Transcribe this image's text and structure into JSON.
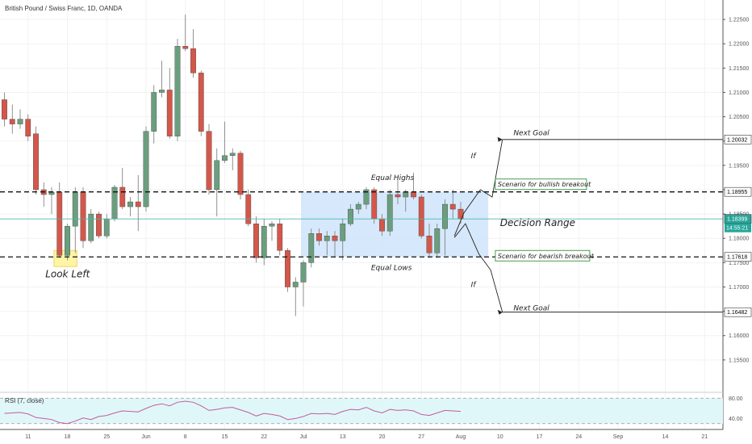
{
  "header": {
    "title": "British Pound / Swiss Franc, 1D, OANDA"
  },
  "indicator": {
    "label": "RSI (7, close)"
  },
  "colors": {
    "bull": "#6b9e7e",
    "bear": "#d3574a",
    "grid": "#f2f2f2",
    "range_fill": "#cfe4fa",
    "rsi_line": "#c25b9a",
    "rsi_band": "#e0f7fa",
    "price_line": "#4db6ac"
  },
  "chart_data": {
    "type": "candlestick",
    "ylim": [
      1.15,
      1.228
    ],
    "price_ticks": [
      "1.22500",
      "1.22000",
      "1.21500",
      "1.21000",
      "1.20500",
      "1.20000",
      "1.19500",
      "1.19000",
      "1.18500",
      "1.18000",
      "1.17500",
      "1.17000",
      "1.16500",
      "1.16000",
      "1.15500"
    ],
    "x_ticks": [
      {
        "label": "11",
        "i": 3
      },
      {
        "label": "18",
        "i": 8
      },
      {
        "label": "25",
        "i": 13
      },
      {
        "label": "Jun",
        "i": 18
      },
      {
        "label": "8",
        "i": 23
      },
      {
        "label": "15",
        "i": 28
      },
      {
        "label": "22",
        "i": 33
      },
      {
        "label": "Jul",
        "i": 38
      },
      {
        "label": "13",
        "i": 43
      },
      {
        "label": "20",
        "i": 48
      },
      {
        "label": "27",
        "i": 53
      },
      {
        "label": "Aug",
        "i": 58
      },
      {
        "label": "10",
        "i": 63
      },
      {
        "label": "17",
        "i": 68
      },
      {
        "label": "24",
        "i": 73
      },
      {
        "label": "Sep",
        "i": 78
      },
      {
        "label": "14",
        "i": 84
      },
      {
        "label": "21",
        "i": 89
      }
    ],
    "candles": [
      [
        1.2085,
        1.21,
        1.203,
        1.2045
      ],
      [
        1.2045,
        1.2075,
        1.2015,
        1.2035
      ],
      [
        1.2035,
        1.2065,
        1.2025,
        1.2045
      ],
      [
        1.2045,
        1.2055,
        1.2,
        1.201
      ],
      [
        1.2015,
        1.203,
        1.189,
        1.19
      ],
      [
        1.19,
        1.1915,
        1.1865,
        1.189
      ],
      [
        1.189,
        1.1905,
        1.185,
        1.1895
      ],
      [
        1.1895,
        1.1915,
        1.176,
        1.1765
      ],
      [
        1.1765,
        1.183,
        1.1755,
        1.1825
      ],
      [
        1.1825,
        1.1905,
        1.177,
        1.1895
      ],
      [
        1.1895,
        1.1905,
        1.178,
        1.1795
      ],
      [
        1.1795,
        1.186,
        1.179,
        1.185
      ],
      [
        1.185,
        1.1855,
        1.18,
        1.1805
      ],
      [
        1.1805,
        1.185,
        1.18,
        1.184
      ],
      [
        1.184,
        1.191,
        1.1835,
        1.1905
      ],
      [
        1.1905,
        1.1945,
        1.186,
        1.1865
      ],
      [
        1.1865,
        1.1885,
        1.1845,
        1.1875
      ],
      [
        1.1875,
        1.193,
        1.1815,
        1.1865
      ],
      [
        1.1865,
        1.203,
        1.1855,
        1.202
      ],
      [
        1.202,
        1.2115,
        1.1995,
        1.21
      ],
      [
        1.21,
        1.2165,
        1.209,
        1.2105
      ],
      [
        1.2105,
        1.215,
        1.2005,
        1.201
      ],
      [
        1.201,
        1.221,
        1.2,
        1.2195
      ],
      [
        1.2195,
        1.226,
        1.2185,
        1.219
      ],
      [
        1.219,
        1.223,
        1.213,
        1.214
      ],
      [
        1.214,
        1.2145,
        1.201,
        1.202
      ],
      [
        1.202,
        1.2035,
        1.189,
        1.19
      ],
      [
        1.19,
        1.1985,
        1.1845,
        1.196
      ],
      [
        1.196,
        1.204,
        1.1955,
        1.197
      ],
      [
        1.197,
        1.1985,
        1.194,
        1.1975
      ],
      [
        1.1975,
        1.198,
        1.188,
        1.189
      ],
      [
        1.189,
        1.19,
        1.1825,
        1.183
      ],
      [
        1.183,
        1.1845,
        1.175,
        1.176
      ],
      [
        1.176,
        1.184,
        1.1745,
        1.1825
      ],
      [
        1.1825,
        1.1835,
        1.1795,
        1.183
      ],
      [
        1.183,
        1.184,
        1.1765,
        1.1775
      ],
      [
        1.1775,
        1.178,
        1.169,
        1.17
      ],
      [
        1.17,
        1.172,
        1.164,
        1.171
      ],
      [
        1.171,
        1.1755,
        1.166,
        1.175
      ],
      [
        1.175,
        1.182,
        1.174,
        1.181
      ],
      [
        1.181,
        1.182,
        1.1785,
        1.1795
      ],
      [
        1.1795,
        1.1815,
        1.1765,
        1.1805
      ],
      [
        1.1805,
        1.1815,
        1.176,
        1.1795
      ],
      [
        1.1795,
        1.184,
        1.1755,
        1.183
      ],
      [
        1.183,
        1.187,
        1.1825,
        1.186
      ],
      [
        1.186,
        1.1875,
        1.185,
        1.187
      ],
      [
        1.187,
        1.1905,
        1.186,
        1.19
      ],
      [
        1.19,
        1.1905,
        1.183,
        1.184
      ],
      [
        1.184,
        1.185,
        1.1805,
        1.1815
      ],
      [
        1.1815,
        1.19,
        1.1805,
        1.189
      ],
      [
        1.189,
        1.192,
        1.187,
        1.1885
      ],
      [
        1.1885,
        1.19,
        1.1855,
        1.1895
      ],
      [
        1.1895,
        1.1935,
        1.188,
        1.1885
      ],
      [
        1.1885,
        1.189,
        1.18,
        1.1805
      ],
      [
        1.1805,
        1.183,
        1.176,
        1.177
      ],
      [
        1.177,
        1.183,
        1.176,
        1.182
      ],
      [
        1.182,
        1.188,
        1.1765,
        1.187
      ],
      [
        1.187,
        1.19,
        1.184,
        1.186
      ],
      [
        1.186,
        1.1875,
        1.183,
        1.184
      ]
    ],
    "rsi": {
      "ylim": [
        20,
        90
      ],
      "band": [
        30,
        80
      ],
      "ticks": [
        "80.00",
        "40.00"
      ],
      "values": [
        50,
        51,
        52,
        49,
        42,
        40,
        38,
        32,
        30,
        35,
        41,
        38,
        44,
        46,
        51,
        55,
        54,
        53,
        60,
        66,
        69,
        65,
        72,
        74,
        72,
        65,
        56,
        58,
        61,
        62,
        57,
        52,
        45,
        50,
        48,
        45,
        38,
        40,
        44,
        50,
        49,
        50,
        48,
        54,
        58,
        57,
        62,
        55,
        51,
        58,
        56,
        57,
        55,
        48,
        46,
        51,
        56,
        55,
        54
      ]
    },
    "annotations": {
      "equal_highs": "Equal Highs",
      "equal_lows": "Equal Lows",
      "decision_range": "Decision Range",
      "look_left": "Look Left",
      "if_up": "If",
      "if_down": "If",
      "next_goal_up": "Next Goal",
      "next_goal_down": "Next Goal",
      "bull_scenario": "Scenario for bullish breakout",
      "bear_scenario": "Scenario for bearish breakout"
    },
    "levels": {
      "top": 1.18955,
      "bottom": 1.17618,
      "target_up": 1.20032,
      "target_down": 1.16482,
      "current": 1.18399
    },
    "level_tags": {
      "top": "1.18955",
      "bottom": "1.17618",
      "target_up": "1.20032",
      "target_down": "1.16482",
      "current": "1.18399",
      "countdown": "14:55:21"
    }
  }
}
